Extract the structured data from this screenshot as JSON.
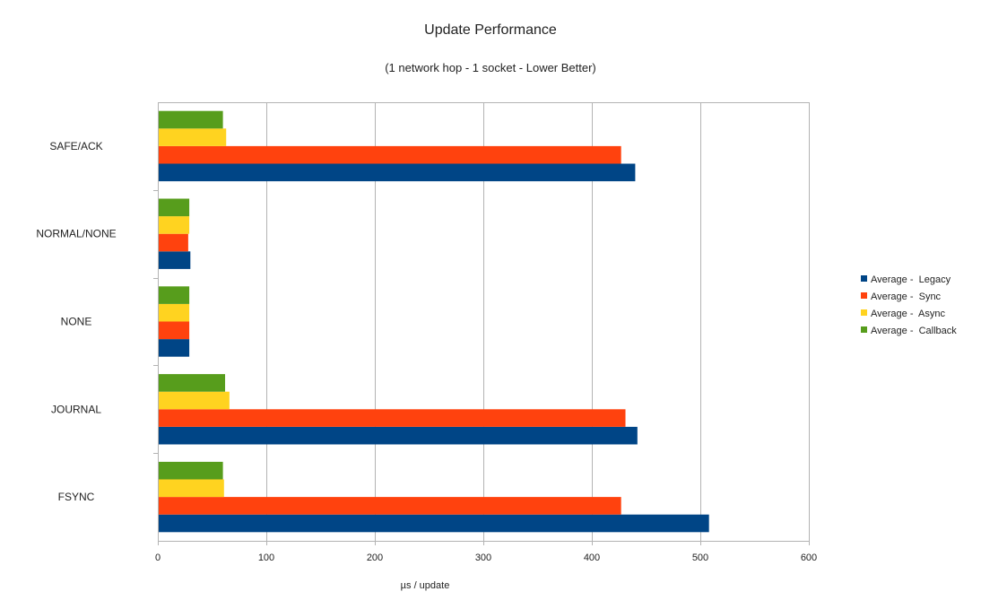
{
  "chart_data": {
    "type": "bar",
    "orientation": "horizontal",
    "title": "Update Performance",
    "subtitle": "(1 network hop - 1 socket - Lower Better)",
    "xlabel": "µs / update",
    "ylabel": "",
    "xlim": [
      0,
      600
    ],
    "x_ticks": [
      0,
      100,
      200,
      300,
      400,
      500,
      600
    ],
    "grid": true,
    "legend_position": "right",
    "categories": [
      "SAFE/ACK",
      "NORMAL/NONE",
      "NONE",
      "JOURNAL",
      "FSYNC"
    ],
    "series": [
      {
        "name": "Average -  Legacy",
        "color": "#004586",
        "values": [
          440,
          30,
          29,
          442,
          508
        ]
      },
      {
        "name": "Average -  Sync",
        "color": "#ff420e",
        "values": [
          427,
          28,
          29,
          431,
          427
        ]
      },
      {
        "name": "Average -  Async",
        "color": "#ffd320",
        "values": [
          63,
          29,
          29,
          66,
          61
        ]
      },
      {
        "name": "Average -  Callback",
        "color": "#579d1c",
        "values": [
          60,
          29,
          29,
          62,
          60
        ]
      }
    ],
    "series_stack_order_bottom_to_top": [
      "Average -  Legacy",
      "Average -  Sync",
      "Average -  Async",
      "Average -  Callback"
    ],
    "legend_order": [
      "Average -  Legacy",
      "Average -  Sync",
      "Average -  Async",
      "Average -  Callback"
    ],
    "colors": {
      "gridline": "#b3b3b3",
      "axis": "#b3b3b3",
      "text": "#222222"
    }
  }
}
